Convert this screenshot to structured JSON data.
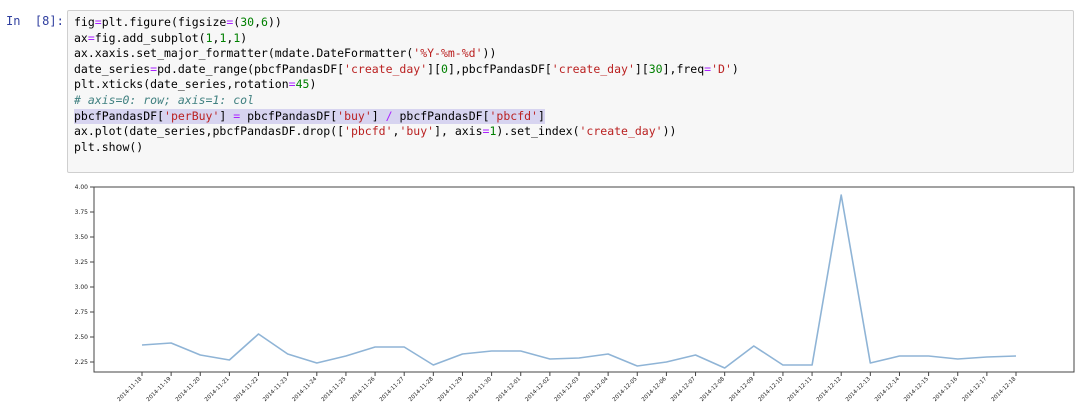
{
  "cell": {
    "prompt": "In  [8]:",
    "code_lines": [
      {
        "text": "fig=plt.figure(figsize=(30,6))"
      },
      {
        "text": "ax=fig.add_subplot(1,1,1)"
      },
      {
        "text": "ax.xaxis.set_major_formatter(mdate.DateFormatter('%Y-%m-%d'))"
      },
      {
        "text": "date_series=pd.date_range(pbcfPandasDF['create_day'][0],pbcfPandasDF['create_day'][30],freq='D')"
      },
      {
        "text": "plt.xticks(date_series,rotation=45)"
      },
      {
        "text": "# axis=0: row; axis=1: col",
        "comment": true
      },
      {
        "text": "pbcfPandasDF['perBuy'] = pbcfPandasDF['buy'] / pbcfPandasDF['pbcfd']",
        "highlight": true
      },
      {
        "text": "ax.plot(date_series,pbcfPandasDF.drop(['pbcfd','buy'], axis=1).set_index('create_day'))"
      },
      {
        "text": "plt.show()"
      }
    ]
  },
  "chart_data": {
    "type": "line",
    "title": "",
    "xlabel": "",
    "ylabel": "",
    "grid": false,
    "legend": "none",
    "ylim": [
      2.15,
      4.0
    ],
    "yticks": [
      "4.00",
      "3.75",
      "3.50",
      "3.25",
      "3.00",
      "2.75",
      "2.50",
      "2.25"
    ],
    "ytick_values": [
      4.0,
      3.75,
      3.5,
      3.25,
      3.0,
      2.75,
      2.5,
      2.25
    ],
    "line_color": "#8fb4d6",
    "categories": [
      "2014-11-18",
      "2014-11-19",
      "2014-11-20",
      "2014-11-21",
      "2014-11-22",
      "2014-11-23",
      "2014-11-24",
      "2014-11-25",
      "2014-11-26",
      "2014-11-27",
      "2014-11-28",
      "2014-11-29",
      "2014-11-30",
      "2014-12-01",
      "2014-12-02",
      "2014-12-03",
      "2014-12-04",
      "2014-12-05",
      "2014-12-06",
      "2014-12-07",
      "2014-12-08",
      "2014-12-09",
      "2014-12-10",
      "2014-12-11",
      "2014-12-12",
      "2014-12-13",
      "2014-12-14",
      "2014-12-15",
      "2014-12-16",
      "2014-12-17",
      "2014-12-18"
    ],
    "values": [
      2.42,
      2.44,
      2.32,
      2.27,
      2.53,
      2.33,
      2.24,
      2.31,
      2.4,
      2.4,
      2.22,
      2.33,
      2.36,
      2.36,
      2.28,
      2.29,
      2.33,
      2.21,
      2.25,
      2.32,
      2.19,
      2.41,
      2.22,
      2.22,
      3.92,
      2.24,
      2.31,
      2.31,
      2.28,
      2.3,
      2.31
    ]
  }
}
